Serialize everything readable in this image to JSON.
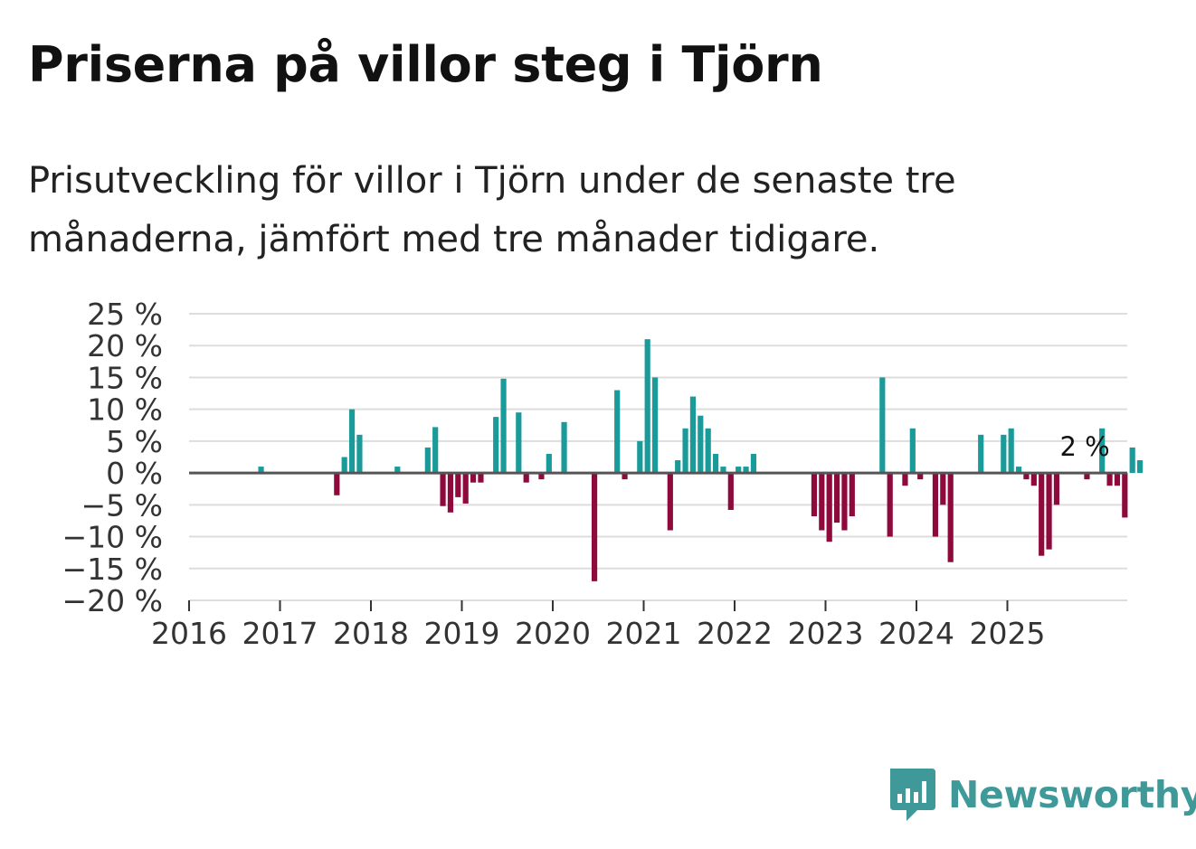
{
  "title": "Priserna på villor steg i Tjörn",
  "subtitle": "Prisutveckling för villor i Tjörn under de senaste tre månaderna, jämfört med tre månader tidigare.",
  "brand": {
    "name": "Newsworthy",
    "icon": "newsworthy-logo-icon"
  },
  "colors": {
    "positive": "#1a9b9a",
    "negative": "#8f0a3c",
    "grid": "#dddddd",
    "zero": "#555555",
    "brand": "#3f9998"
  },
  "chart_data": {
    "type": "bar",
    "title": "Priserna på villor steg i Tjörn",
    "xlabel": "",
    "ylabel": "",
    "ylim": [
      -20,
      25
    ],
    "y_ticks": [
      "25 %",
      "20 %",
      "15 %",
      "10 %",
      "5 %",
      "0 %",
      "−5 %",
      "−10 %",
      "−15 %",
      "−20 %"
    ],
    "y_tick_values": [
      25,
      20,
      15,
      10,
      5,
      0,
      -5,
      -10,
      -15,
      -20
    ],
    "x_ticks": [
      "2016",
      "2017",
      "2018",
      "2019",
      "2020",
      "2021",
      "2022",
      "2023",
      "2024",
      "2025"
    ],
    "x_start_year": 2016,
    "x_end_year": 2026.3,
    "annotation": {
      "label": "2 %",
      "index": 118
    },
    "series": [
      {
        "name": "Prisutveckling",
        "values": [
          0,
          0,
          0,
          0,
          0,
          0,
          0,
          0,
          0,
          1,
          0,
          0,
          0,
          0,
          0,
          0,
          0,
          0,
          0,
          -3.5,
          2.5,
          10,
          6,
          0,
          0,
          0,
          0,
          1,
          0,
          0,
          0,
          4,
          7.2,
          -5.2,
          -6.2,
          -3.8,
          -4.8,
          -1.5,
          -1.5,
          0,
          8.8,
          14.8,
          0,
          9.5,
          -1.5,
          0,
          -1,
          3,
          0,
          8,
          0,
          0,
          0,
          -17,
          0,
          0,
          13,
          -1,
          0,
          5,
          21,
          15,
          0,
          -9,
          2,
          7,
          12,
          9,
          7,
          3,
          1,
          -5.8,
          1,
          1,
          3,
          0,
          0,
          0,
          0,
          0,
          0,
          0,
          -6.8,
          -9,
          -10.8,
          -7.8,
          -9,
          -6.8,
          0,
          0,
          0,
          15,
          -10,
          0,
          -2,
          7,
          -1,
          0,
          -10,
          -5,
          -14,
          0,
          0,
          0,
          6,
          0,
          0,
          6,
          7,
          1,
          -1,
          -2,
          -13,
          -12,
          -5,
          0,
          0,
          0,
          -1,
          0,
          7,
          -2,
          -2,
          -7,
          4,
          2
        ]
      }
    ]
  }
}
